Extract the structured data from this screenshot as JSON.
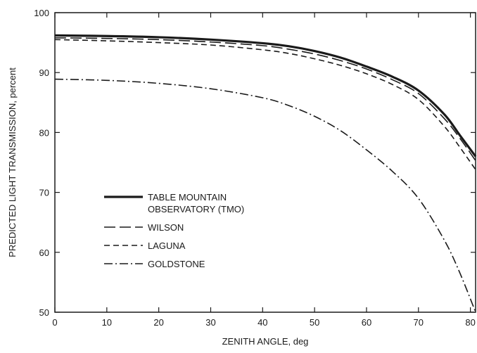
{
  "chart_data": {
    "type": "line",
    "title": "",
    "xlabel": "ZENITH ANGLE, deg",
    "ylabel": "PREDICTED LIGHT TRANSMISSION, percent",
    "xlim": [
      0,
      81
    ],
    "ylim": [
      50,
      100
    ],
    "xticks": [
      0,
      10,
      20,
      30,
      40,
      50,
      60,
      70,
      80
    ],
    "yticks": [
      50,
      60,
      70,
      80,
      90,
      100
    ],
    "grid": false,
    "legend_position": "lower-left",
    "series": [
      {
        "name": "TABLE MOUNTAIN OBSERVATORY (TMO)",
        "legend_lines": [
          "TABLE MOUNTAIN",
          "OBSERVATORY (TMO)"
        ],
        "style": "solid-thick",
        "x": [
          0,
          10,
          20,
          30,
          40,
          45,
          50,
          55,
          60,
          65,
          70,
          75,
          78,
          81
        ],
        "y": [
          96.2,
          96.1,
          95.9,
          95.5,
          94.9,
          94.4,
          93.6,
          92.5,
          91.0,
          89.3,
          87.0,
          83.0,
          79.5,
          76.0
        ]
      },
      {
        "name": "WILSON",
        "legend_lines": [
          "WILSON"
        ],
        "style": "long-dash",
        "x": [
          0,
          10,
          20,
          30,
          40,
          45,
          50,
          55,
          60,
          65,
          70,
          75,
          78,
          81
        ],
        "y": [
          95.8,
          95.7,
          95.5,
          95.1,
          94.5,
          93.9,
          93.1,
          92.0,
          90.6,
          88.8,
          86.5,
          82.3,
          79.0,
          75.3
        ]
      },
      {
        "name": "LAGUNA",
        "legend_lines": [
          "LAGUNA"
        ],
        "style": "short-dash",
        "x": [
          0,
          10,
          20,
          30,
          40,
          45,
          50,
          55,
          60,
          65,
          70,
          75,
          78,
          81
        ],
        "y": [
          95.5,
          95.3,
          95.0,
          94.6,
          93.8,
          93.2,
          92.3,
          91.2,
          89.8,
          88.0,
          85.5,
          81.0,
          77.5,
          73.8
        ]
      },
      {
        "name": "GOLDSTONE",
        "legend_lines": [
          "GOLDSTONE"
        ],
        "style": "dash-dot",
        "x": [
          0,
          10,
          20,
          30,
          40,
          45,
          50,
          55,
          60,
          65,
          70,
          75,
          78,
          81
        ],
        "y": [
          88.9,
          88.7,
          88.2,
          87.3,
          85.8,
          84.5,
          82.7,
          80.3,
          77.1,
          73.5,
          69.0,
          62.0,
          56.5,
          50.0
        ]
      }
    ]
  }
}
